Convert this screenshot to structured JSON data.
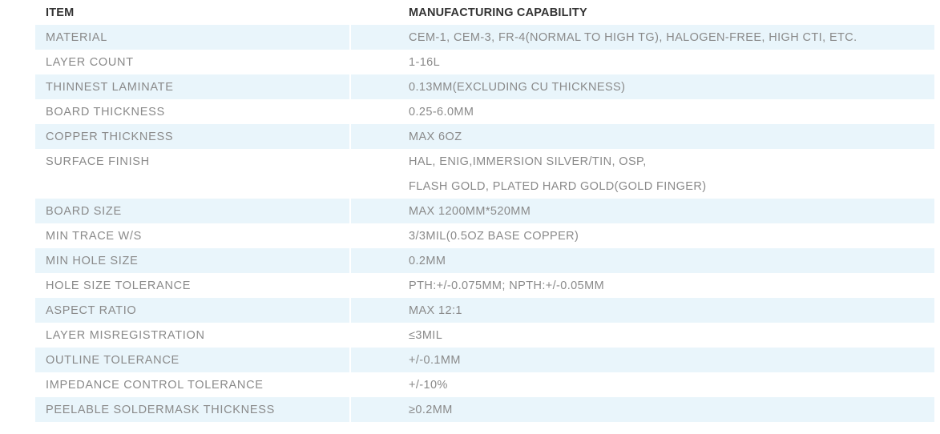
{
  "header": {
    "item": "ITEM",
    "capability": "MANUFACTURING CAPABILITY"
  },
  "rows": [
    {
      "item": "MATERIAL",
      "capability": "CEM-1, CEM-3, FR-4(NORMAL TO HIGH TG), HALOGEN-FREE, HIGH CTI, ETC."
    },
    {
      "item": "LAYER COUNT",
      "capability": "1-16L"
    },
    {
      "item": "THINNEST LAMINATE",
      "capability": "0.13MM(EXCLUDING CU THICKNESS)"
    },
    {
      "item": "BOARD THICKNESS",
      "capability": "0.25-6.0MM"
    },
    {
      "item": "COPPER THICKNESS",
      "capability": "MAX 6OZ"
    },
    {
      "item": "SURFACE FINISH",
      "capability": "HAL, ENIG,IMMERSION SILVER/TIN, OSP,",
      "capability_line2": "FLASH GOLD, PLATED HARD GOLD(GOLD FINGER)"
    },
    {
      "item": "BOARD SIZE",
      "capability": "MAX 1200MM*520MM"
    },
    {
      "item": "MIN TRACE W/S",
      "capability": "3/3MIL(0.5OZ BASE COPPER)"
    },
    {
      "item": "MIN HOLE SIZE",
      "capability": "0.2MM"
    },
    {
      "item": "HOLE SIZE TOLERANCE",
      "capability": "PTH:+/-0.075MM; NPTH:+/-0.05MM"
    },
    {
      "item": "ASPECT RATIO",
      "capability": "MAX 12:1"
    },
    {
      "item": "LAYER MISREGISTRATION",
      "capability": "≤3MIL"
    },
    {
      "item": "OUTLINE TOLERANCE",
      "capability": "+/-0.1MM"
    },
    {
      "item": "IMPEDANCE CONTROL TOLERANCE",
      "capability": "+/-10%"
    },
    {
      "item": "PEELABLE SOLDERMASK THICKNESS",
      "capability": "≥0.2MM"
    }
  ],
  "colors": {
    "stripe": "#e9f5fb",
    "header_text": "#333333",
    "body_text": "#8a8a8a"
  }
}
